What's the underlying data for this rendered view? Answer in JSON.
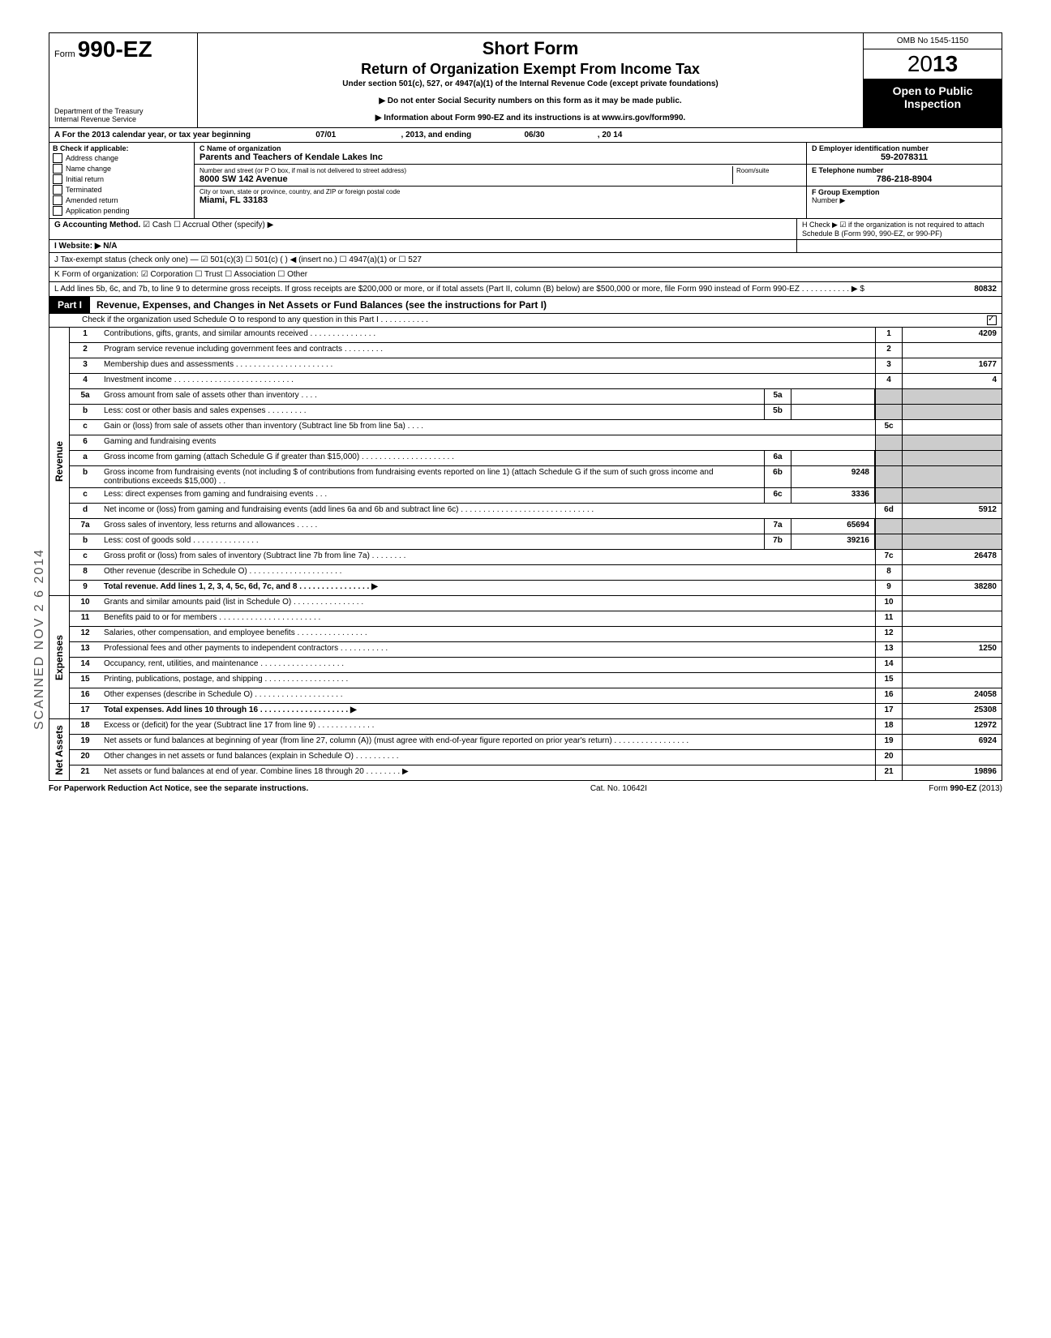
{
  "header": {
    "form_prefix": "Form",
    "form_number": "990-EZ",
    "title1": "Short Form",
    "title2": "Return of Organization Exempt From Income Tax",
    "subtitle": "Under section 501(c), 527, or 4947(a)(1) of the Internal Revenue Code (except private foundations)",
    "note1": "▶ Do not enter Social Security numbers on this form as it may be made public.",
    "note2": "▶ Information about Form 990-EZ and its instructions is at www.irs.gov/form990.",
    "dept1": "Department of the Treasury",
    "dept2": "Internal Revenue Service",
    "omb": "OMB No 1545-1150",
    "year": "2013",
    "open1": "Open to Public",
    "open2": "Inspection"
  },
  "rowA": {
    "prefix": "A  For the 2013 calendar year, or tax year beginning",
    "begin": "07/01",
    "mid": ", 2013, and ending",
    "end_m": "06/30",
    "end_y": ", 20   14"
  },
  "boxB": {
    "header": "B  Check if applicable:",
    "items": [
      "Address change",
      "Name change",
      "Initial return",
      "Terminated",
      "Amended return",
      "Application pending"
    ]
  },
  "boxC": {
    "name_label": "C  Name of organization",
    "name_value": "Parents and Teachers of Kendale Lakes Inc",
    "street_label": "Number and street (or P O  box, if mail is not delivered to street address)",
    "room_label": "Room/suite",
    "street_value": "8000 SW 142 Avenue",
    "city_label": "City or town, state or province, country, and ZIP or foreign postal code",
    "city_value": "Miami, FL 33183"
  },
  "boxD": {
    "label": "D Employer identification number",
    "value": "59-2078311"
  },
  "boxE": {
    "label": "E Telephone number",
    "value": "786-218-8904"
  },
  "boxF": {
    "label": "F Group Exemption",
    "label2": "Number ▶",
    "value": ""
  },
  "rowG": {
    "label": "G  Accounting Method.",
    "opts": "☑ Cash    ☐ Accrual    Other (specify) ▶"
  },
  "rowH": {
    "text": "H  Check ▶ ☑ if the organization is not required to attach Schedule B (Form 990, 990-EZ, or 990-PF)"
  },
  "rowI": {
    "label": "I   Website: ▶",
    "value": "N/A"
  },
  "rowJ": {
    "text": "J  Tax-exempt status (check only one) —  ☑ 501(c)(3)   ☐ 501(c) (        ) ◀ (insert no.)  ☐ 4947(a)(1) or   ☐ 527"
  },
  "rowK": {
    "text": "K  Form of organization:   ☑ Corporation    ☐ Trust            ☐ Association     ☐ Other"
  },
  "rowL": {
    "text": "L  Add lines 5b, 6c, and 7b, to line 9 to determine gross receipts. If gross receipts are $200,000 or more, or if total assets (Part II, column (B) below) are $500,000 or more, file Form 990 instead of Form 990-EZ  .  .  .  .  .  .  .  .  .  .  .  ▶  $",
    "value": "80832"
  },
  "part1": {
    "tag": "Part I",
    "title": "Revenue, Expenses, and Changes in Net Assets or Fund Balances (see the instructions for Part I)",
    "check_text": "Check if the organization used Schedule O to respond to any question in this Part I  .  .  .  .  .  .  .  .  .  .  .",
    "check_mark": "☑"
  },
  "sections": {
    "revenue_label": "Revenue",
    "expenses_label": "Expenses",
    "netassets_label": "Net Assets"
  },
  "lines": [
    {
      "no": "1",
      "desc": "Contributions, gifts, grants, and similar amounts received .  .  .  .  .  .  .  .  .  .  .  .  .  .  .",
      "box": "1",
      "val": "4209"
    },
    {
      "no": "2",
      "desc": "Program service revenue including government fees and contracts   .  .  .  .  .  .  .  .  .",
      "box": "2",
      "val": ""
    },
    {
      "no": "3",
      "desc": "Membership dues and assessments .  .  .  .  .  .  .  .  .  .  .  .  .  .  .  .  .  .  .  .  .  .",
      "box": "3",
      "val": "1677"
    },
    {
      "no": "4",
      "desc": "Investment income   .  .  .  .  .  .  .  .  .  .  .  .  .  .  .  .  .  .  .  .  .  .  .  .  .  .  .",
      "box": "4",
      "val": "4"
    },
    {
      "no": "5a",
      "desc": "Gross amount from sale of assets other than inventory   .  .  .  .",
      "sub": "5a",
      "subval": ""
    },
    {
      "no": "b",
      "desc": "Less: cost or other basis and sales expenses .  .  .  .  .  .  .  .  .",
      "sub": "5b",
      "subval": ""
    },
    {
      "no": "c",
      "desc": "Gain or (loss) from sale of assets other than inventory (Subtract line 5b from line 5a) .  .  .  .",
      "box": "5c",
      "val": ""
    },
    {
      "no": "6",
      "desc": "Gaming and fundraising events",
      "noboxes": true
    },
    {
      "no": "a",
      "desc": "Gross income from gaming (attach Schedule G if greater than $15,000) .  .  .  .  .  .  .  .  .  .  .  .  .  .  .  .  .  .  .  .  .",
      "sub": "6a",
      "subval": ""
    },
    {
      "no": "b",
      "desc": "Gross income from fundraising events (not including  $                    of contributions from fundraising events reported on line 1) (attach Schedule G if the sum of such gross income and contributions exceeds $15,000) .  .",
      "sub": "6b",
      "subval": "9248"
    },
    {
      "no": "c",
      "desc": "Less: direct expenses from gaming and fundraising events   .  .  .",
      "sub": "6c",
      "subval": "3336"
    },
    {
      "no": "d",
      "desc": "Net income or (loss) from gaming and fundraising events (add lines 6a and 6b and subtract line 6c)    .  .  .  .  .  .  .  .  .  .  .  .  .  .  .  .  .  .  .  .  .  .  .  .  .  .  .  .  .  .",
      "box": "6d",
      "val": "5912"
    },
    {
      "no": "7a",
      "desc": "Gross sales of inventory, less returns and allowances  .  .  .  .  .",
      "sub": "7a",
      "subval": "65694"
    },
    {
      "no": "b",
      "desc": "Less: cost of goods sold    .  .  .  .  .  .  .  .  .  .  .  .  .  .  .",
      "sub": "7b",
      "subval": "39216"
    },
    {
      "no": "c",
      "desc": "Gross profit or (loss) from sales of inventory (Subtract line 7b from line 7a)  .  .  .  .  .  .  .  .",
      "box": "7c",
      "val": "26478"
    },
    {
      "no": "8",
      "desc": "Other revenue (describe in Schedule O) .  .  .  .  .  .  .  .  .  .  .  .  .  .  .  .  .  .  .  .  .",
      "box": "8",
      "val": ""
    },
    {
      "no": "9",
      "desc": "Total revenue. Add lines 1, 2, 3, 4, 5c, 6d, 7c, and 8  .  .  .  .  .  .  .  .  .  .  .  .  .  .  .  . ▶",
      "box": "9",
      "val": "38280",
      "bold": true
    }
  ],
  "exp_lines": [
    {
      "no": "10",
      "desc": "Grants and similar amounts paid (list in Schedule O)  .  .  .  .  .  .  .  .  .  .  .  .  .  .  .  .",
      "box": "10",
      "val": ""
    },
    {
      "no": "11",
      "desc": "Benefits paid to or for members  .  .  .  .  .  .  .  .  .  .  .  .  .  .  .  .  .  .  .  .  .  .  .",
      "box": "11",
      "val": ""
    },
    {
      "no": "12",
      "desc": "Salaries, other compensation, and employee benefits .  .  .  .  .  .  .  .  .  .  .  .  .  .  .  .",
      "box": "12",
      "val": ""
    },
    {
      "no": "13",
      "desc": "Professional fees and other payments to independent contractors  .  .  .  .  .  .  .  .  .  .  .",
      "box": "13",
      "val": "1250"
    },
    {
      "no": "14",
      "desc": "Occupancy, rent, utilities, and maintenance   .  .  .  .  .  .  .  .  .  .  .  .  .  .  .  .  .  .  .",
      "box": "14",
      "val": ""
    },
    {
      "no": "15",
      "desc": "Printing, publications, postage, and shipping .  .  .  .  .  .  .  .  .  .  .  .  .  .  .  .  .  .  .",
      "box": "15",
      "val": ""
    },
    {
      "no": "16",
      "desc": "Other expenses (describe in Schedule O)  .  .  .  .  .  .  .  .  .  .  .  .  .  .  .  .  .  .  .  .",
      "box": "16",
      "val": "24058"
    },
    {
      "no": "17",
      "desc": "Total expenses. Add lines 10 through 16  .  .  .  .  .  .  .  .  .  .  .  .  .  .  .  .  .  .  .  . ▶",
      "box": "17",
      "val": "25308",
      "bold": true
    }
  ],
  "na_lines": [
    {
      "no": "18",
      "desc": "Excess or (deficit) for the year (Subtract line 17 from line 9)  .  .  .  .  .  .  .  .  .  .  .  .  .",
      "box": "18",
      "val": "12972"
    },
    {
      "no": "19",
      "desc": "Net assets or fund balances at beginning of year (from line 27, column (A)) (must agree with end-of-year figure reported on prior year's return)   .  .  .  .  .  .  .  .  .  .  .  .  .  .  .  .  .",
      "box": "19",
      "val": "6924"
    },
    {
      "no": "20",
      "desc": "Other changes in net assets or fund balances (explain in Schedule O) .  .  .  .  .  .  .  .  .  .",
      "box": "20",
      "val": ""
    },
    {
      "no": "21",
      "desc": "Net assets or fund balances at end of year. Combine lines 18 through 20  .  .  .  .  .  .  .  . ▶",
      "box": "21",
      "val": "19896"
    }
  ],
  "footer": {
    "left": "For Paperwork Reduction Act Notice, see the separate instructions.",
    "mid": "Cat. No. 10642I",
    "right": "Form 990-EZ (2013)"
  },
  "stamp": "SCANNED  NOV 2 6 2014"
}
